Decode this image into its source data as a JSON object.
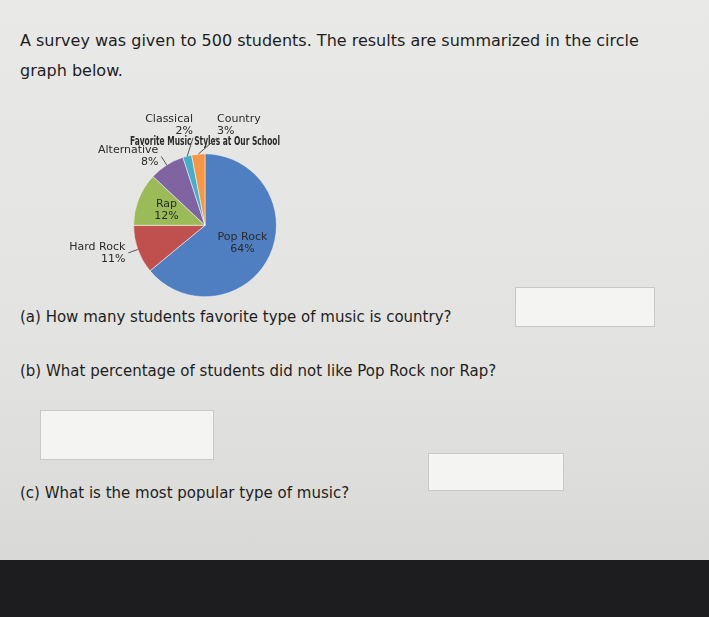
{
  "document": {
    "intro": "A survey was given to 500 students. The results are summarized in the circle graph below.",
    "questions": [
      "(a) How many students favorite type of music is country?",
      "(b) What percentage of students did not like Pop Rock nor Rap?",
      "(c) What is the most popular type of music?"
    ]
  },
  "chart_data": {
    "type": "pie",
    "title": "Favorite Music Styles at Our School",
    "categories": [
      "Pop Rock",
      "Hard Rock",
      "Rap",
      "Alternative",
      "Classical",
      "Country"
    ],
    "values": [
      64,
      11,
      12,
      8,
      2,
      3
    ],
    "value_labels": [
      "64%",
      "11%",
      "12%",
      "8%",
      "2%",
      "3%"
    ],
    "colors": [
      "#4f7fc0",
      "#c0504d",
      "#9bbb59",
      "#8064a2",
      "#4bacc6",
      "#f79646"
    ],
    "data_labels": true
  }
}
